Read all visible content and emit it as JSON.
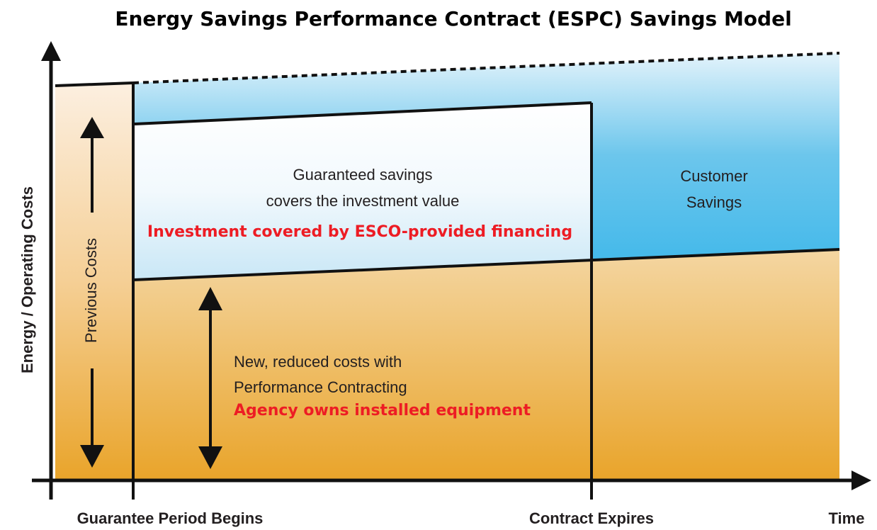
{
  "title": "Energy Savings Performance Contract (ESPC) Savings Model",
  "y_axis_label": "Energy / Operating Costs",
  "x_axis_labels": [
    "Guarantee Period Begins",
    "Contract Expires",
    "Time"
  ],
  "previous_costs": "Previous Costs",
  "guaranteed_savings": {
    "lines": [
      "Guaranteed savings",
      "covers the investment value"
    ],
    "note": "Investment covered by ESCO-provided financing"
  },
  "customer_savings": {
    "lines": [
      "Customer",
      "Savings"
    ]
  },
  "new_costs": {
    "lines": [
      "New, reduced costs with",
      "Performance Contracting"
    ],
    "note": "Agency owns installed equipment"
  }
}
